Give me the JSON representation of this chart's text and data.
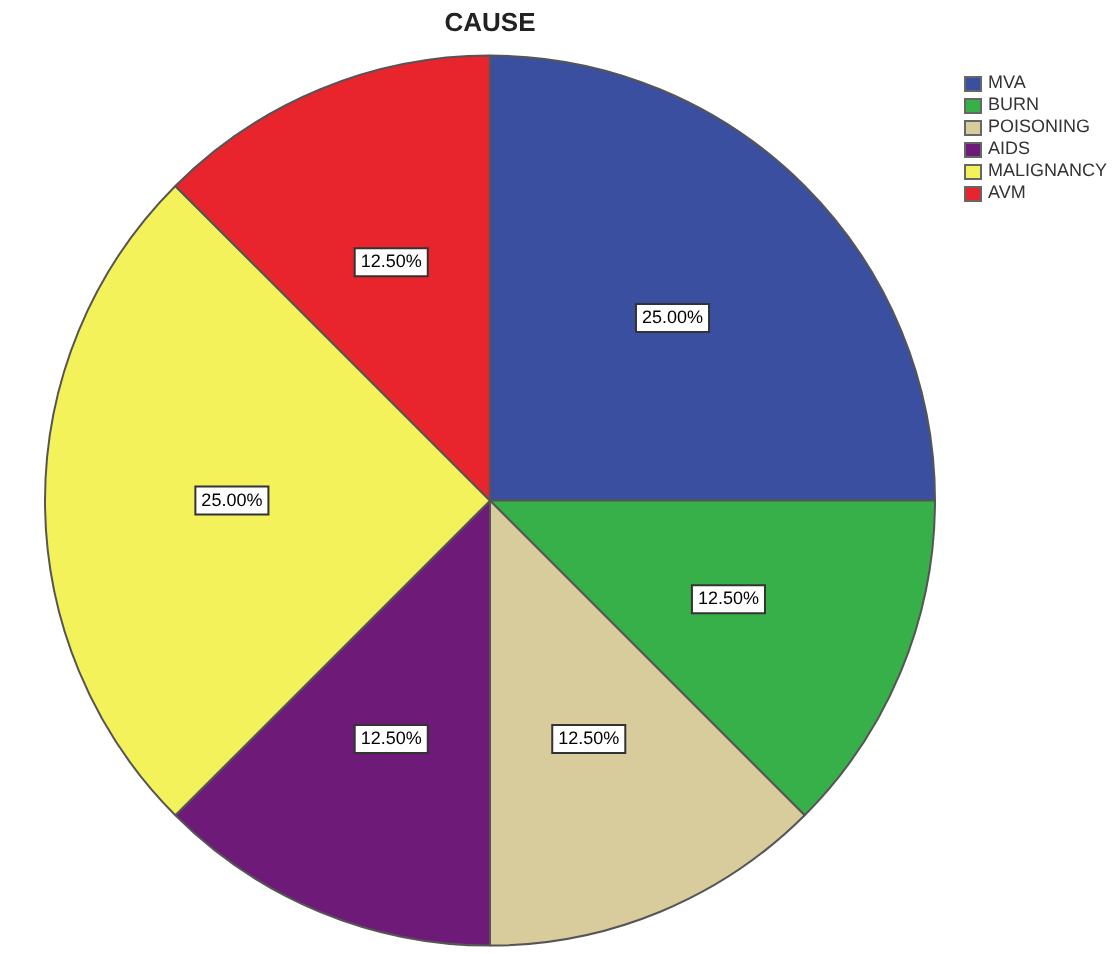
{
  "chart_data": {
    "type": "pie",
    "title": "CAUSE",
    "categories": [
      "MVA",
      "BURN",
      "POISONING",
      "AIDS",
      "MALIGNANCY",
      "AVM"
    ],
    "values": [
      25,
      12.5,
      12.5,
      12.5,
      25,
      12.5
    ],
    "colors": [
      "#3a4fa0",
      "#38b04a",
      "#d8cc9c",
      "#6e1a78",
      "#f4f25a",
      "#e8242c"
    ],
    "value_labels": [
      "25.00%",
      "12.50%",
      "12.50%",
      "12.50%",
      "25.00%",
      "12.50%"
    ],
    "legend": "top right"
  }
}
